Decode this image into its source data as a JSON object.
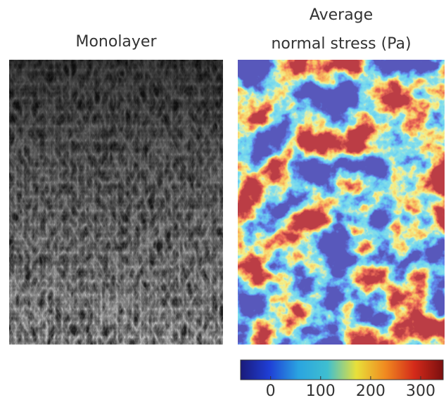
{
  "panels": [
    {
      "title_lines": [
        "Monolayer"
      ]
    },
    {
      "title_lines": [
        "Average",
        "normal stress (Pa)"
      ]
    }
  ],
  "colorbar": {
    "lim": [
      -60,
      345
    ],
    "ticks": [
      0,
      100,
      200,
      300
    ],
    "colors": [
      "#1a1a7a",
      "#1f3fd6",
      "#2aa4e0",
      "#3fbfd0",
      "#e8e03a",
      "#f08a20",
      "#d42a1a",
      "#7a0f0f"
    ]
  }
}
